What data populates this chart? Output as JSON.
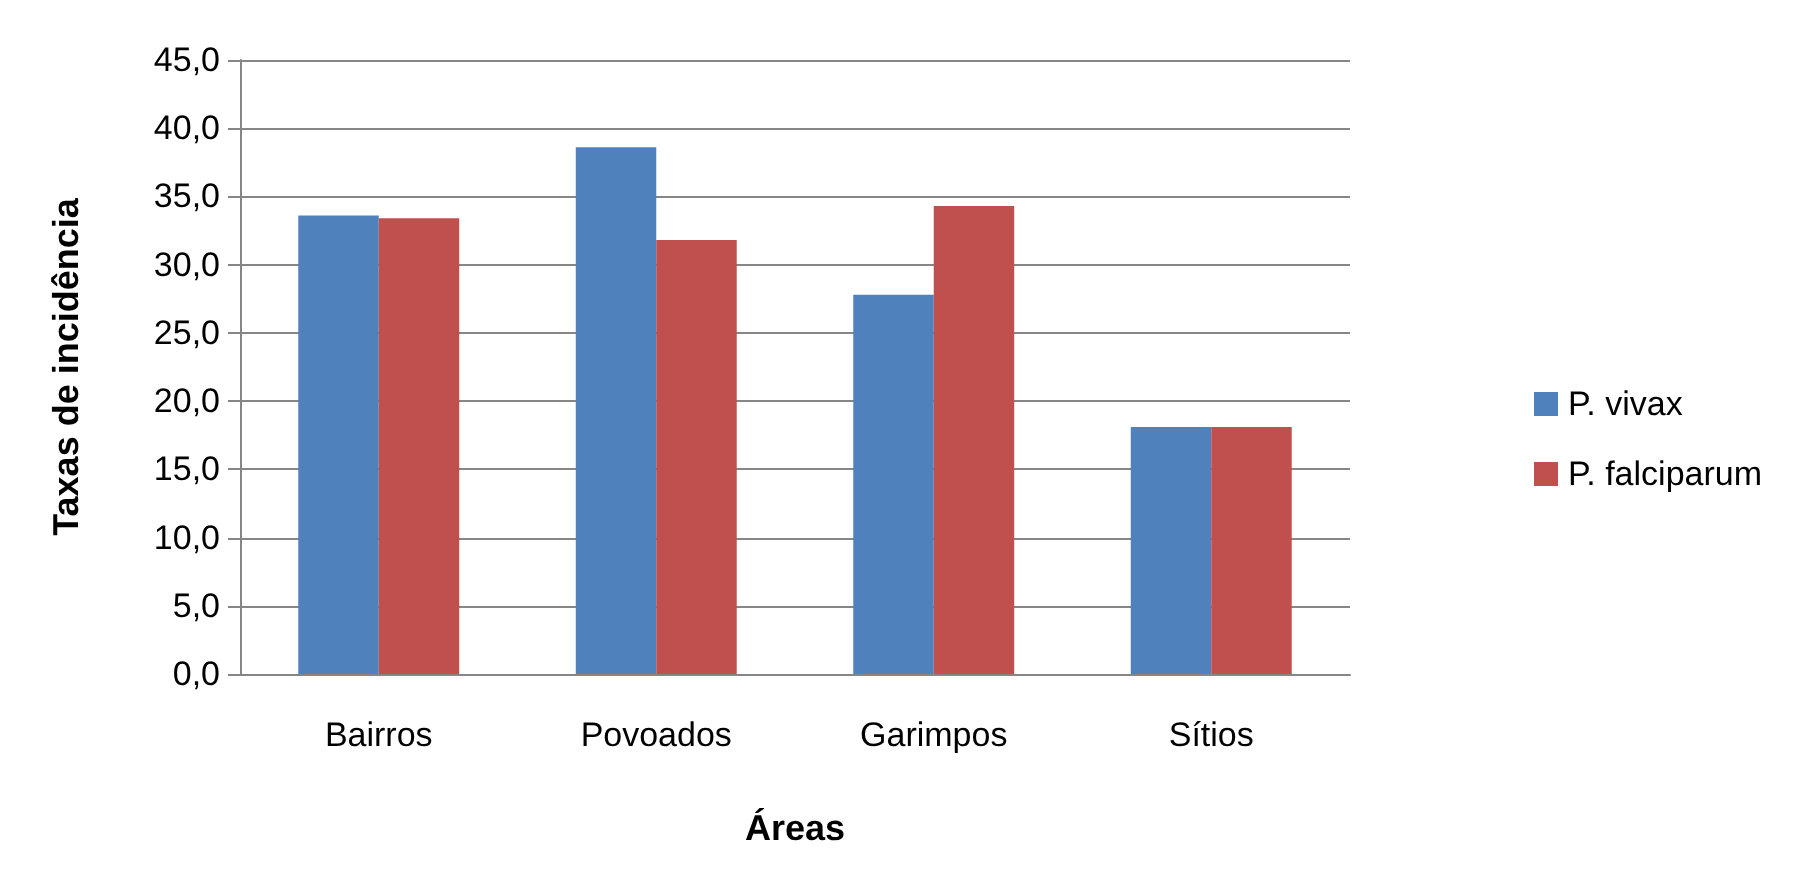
{
  "chart_data": {
    "type": "bar",
    "xlabel": "Áreas",
    "ylabel": "Taxas de incidência",
    "categories": [
      "Bairros",
      "Povoados",
      "Garimpos",
      "Sítios"
    ],
    "series": [
      {
        "name": "P. vivax",
        "color": "#4f81bd",
        "values": [
          33.6,
          38.6,
          27.8,
          18.1
        ]
      },
      {
        "name": "P. falciparum",
        "color": "#c0504d",
        "values": [
          33.4,
          31.8,
          34.3,
          18.1
        ]
      }
    ],
    "ylim": [
      0,
      45
    ],
    "yticks": [
      {
        "value": 0,
        "label": "0,0"
      },
      {
        "value": 5,
        "label": "5,0"
      },
      {
        "value": 10,
        "label": "10,0"
      },
      {
        "value": 15,
        "label": "15,0"
      },
      {
        "value": 20,
        "label": "20,0"
      },
      {
        "value": 25,
        "label": "25,0"
      },
      {
        "value": 30,
        "label": "30,0"
      },
      {
        "value": 35,
        "label": "35,0"
      },
      {
        "value": 40,
        "label": "40,0"
      },
      {
        "value": 45,
        "label": "45,0"
      }
    ],
    "grid": "y",
    "legend": "right"
  }
}
